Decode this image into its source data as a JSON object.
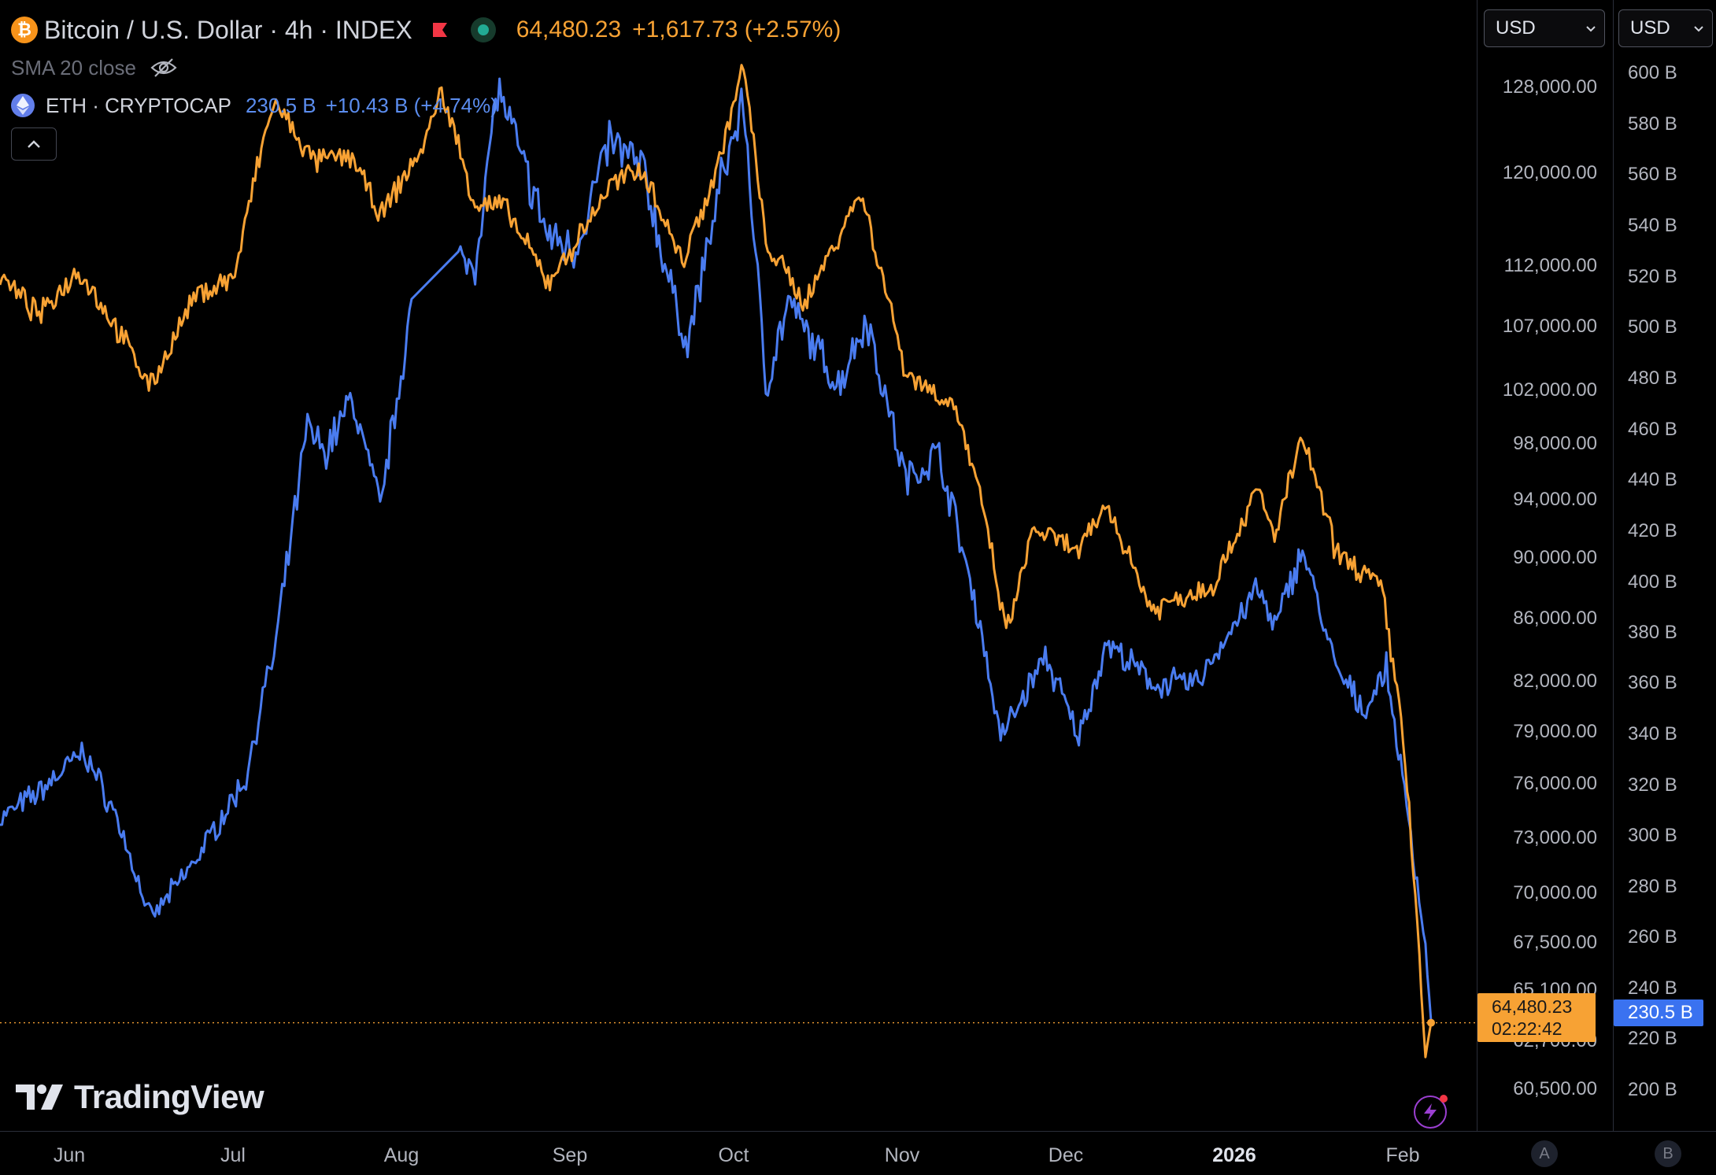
{
  "legend": {
    "title": "Bitcoin / U.S. Dollar · 4h · INDEX",
    "btc_badge": "₿",
    "btc_price": "64,480.23",
    "btc_change": "+1,617.73 (+2.57%)",
    "sma_label": "SMA 20 close",
    "eth_label": "ETH · CRYPTOCAP",
    "eth_value": "230.5 B",
    "eth_change": "+10.43 B (+4.74%)"
  },
  "price_axis_a": {
    "currency": "USD",
    "ticks": [
      "128,000.00",
      "120,000.00",
      "112,000.00",
      "107,000.00",
      "102,000.00",
      "98,000.00",
      "94,000.00",
      "90,000.00",
      "86,000.00",
      "82,000.00",
      "79,000.00",
      "76,000.00",
      "73,000.00",
      "70,000.00",
      "67,500.00",
      "65,100.00",
      "62,700.00",
      "60,500.00"
    ],
    "last_price": "64,480.23",
    "countdown": "02:22:42"
  },
  "price_axis_b": {
    "currency": "USD",
    "ticks": [
      "600 B",
      "580 B",
      "560 B",
      "540 B",
      "520 B",
      "500 B",
      "480 B",
      "460 B",
      "440 B",
      "420 B",
      "400 B",
      "380 B",
      "360 B",
      "340 B",
      "320 B",
      "300 B",
      "280 B",
      "260 B",
      "240 B",
      "220 B",
      "200 B"
    ],
    "last_value": "230.5 B"
  },
  "time_axis": {
    "labels": [
      "Jun",
      "Jul",
      "Aug",
      "Sep",
      "Oct",
      "Nov",
      "Dec",
      "2026",
      "Feb"
    ],
    "scale_a": "A",
    "scale_b": "B"
  },
  "watermark": "TradingView",
  "colors": {
    "btc": "#f7a234",
    "eth": "#4a7cf0",
    "background": "#000000"
  },
  "chart_data": {
    "type": "line",
    "timeframe": "4h",
    "x_range": [
      "2025-05-26",
      "2026-02-06"
    ],
    "series": [
      {
        "name": "Bitcoin / U.S. Dollar",
        "axis": "A",
        "unit": "USD",
        "points": [
          [
            "2025-05-26",
            108500
          ],
          [
            "2025-06-02",
            105500
          ],
          [
            "2025-06-09",
            109000
          ],
          [
            "2025-06-16",
            104500
          ],
          [
            "2025-06-22",
            100500
          ],
          [
            "2025-06-30",
            107000
          ],
          [
            "2025-07-07",
            108500
          ],
          [
            "2025-07-11",
            117000
          ],
          [
            "2025-07-14",
            122500
          ],
          [
            "2025-07-21",
            117500
          ],
          [
            "2025-07-28",
            118000
          ],
          [
            "2025-08-02",
            113000
          ],
          [
            "2025-08-10",
            119000
          ],
          [
            "2025-08-13",
            123500
          ],
          [
            "2025-08-19",
            114000
          ],
          [
            "2025-08-24",
            114000
          ],
          [
            "2025-09-01",
            108000
          ],
          [
            "2025-09-06",
            111000
          ],
          [
            "2025-09-12",
            115500
          ],
          [
            "2025-09-18",
            117000
          ],
          [
            "2025-09-25",
            109500
          ],
          [
            "2025-10-01",
            116500
          ],
          [
            "2025-10-06",
            125500
          ],
          [
            "2025-10-10",
            111000
          ],
          [
            "2025-10-17",
            106500
          ],
          [
            "2025-10-27",
            115000
          ],
          [
            "2025-11-04",
            101500
          ],
          [
            "2025-11-13",
            99000
          ],
          [
            "2025-11-18",
            92000
          ],
          [
            "2025-11-22",
            84500
          ],
          [
            "2025-11-27",
            91000
          ],
          [
            "2025-12-05",
            89500
          ],
          [
            "2025-12-10",
            92500
          ],
          [
            "2025-12-18",
            86000
          ],
          [
            "2025-12-29",
            87500
          ],
          [
            "2026-01-06",
            93500
          ],
          [
            "2026-01-09",
            90500
          ],
          [
            "2026-01-14",
            97000
          ],
          [
            "2026-01-20",
            89500
          ],
          [
            "2026-01-28",
            87500
          ],
          [
            "2026-02-01",
            79000
          ],
          [
            "2026-02-05",
            63000
          ],
          [
            "2026-02-06",
            64480.23
          ]
        ]
      },
      {
        "name": "ETH · CRYPTOCAP",
        "axis": "B",
        "unit": "B",
        "points": [
          [
            "2025-05-26",
            305
          ],
          [
            "2025-06-02",
            315
          ],
          [
            "2025-06-10",
            330
          ],
          [
            "2025-06-16",
            305
          ],
          [
            "2025-06-22",
            268
          ],
          [
            "2025-06-30",
            290
          ],
          [
            "2025-07-09",
            320
          ],
          [
            "2025-07-12",
            350
          ],
          [
            "2025-07-14",
            365
          ],
          [
            "2025-07-20",
            450
          ],
          [
            "2025-07-23",
            440
          ],
          [
            "2025-07-28",
            460
          ],
          [
            "2025-08-02",
            420
          ],
          [
            "2025-08-08",
            500
          ],
          [
            "2025-08-13],",
            555
          ],
          [
            "2025-08-16",
            510
          ],
          [
            "2025-08-19",
            510
          ],
          [
            "2025-08-23",
            575
          ],
          [
            "2025-08-27",
            550
          ],
          [
            "2025-09-01",
            520
          ],
          [
            "2025-09-06",
            515
          ],
          [
            "2025-09-12",
            555
          ],
          [
            "2025-09-18",
            545
          ],
          [
            "2025-09-23",
            500
          ],
          [
            "2025-09-26",
            480
          ],
          [
            "2025-10-02",
            540
          ],
          [
            "2025-10-06",
            570
          ],
          [
            "2025-10-10",
            465
          ],
          [
            "2025-10-14",
            495
          ],
          [
            "2025-10-23",
            465
          ],
          [
            "2025-10-28",
            490
          ],
          [
            "2025-11-04",
            430
          ],
          [
            "2025-11-10",
            440
          ],
          [
            "2025-11-17",
            380
          ],
          [
            "2025-11-21",
            335
          ],
          [
            "2025-11-29",
            365
          ],
          [
            "2025-12-05",
            335
          ],
          [
            "2025-12-10",
            370
          ],
          [
            "2025-12-18",
            355
          ],
          [
            "2025-12-26",
            355
          ],
          [
            "2026-01-06",
            390
          ],
          [
            "2026-01-09",
            375
          ],
          [
            "2026-01-14",
            405
          ],
          [
            "2026-01-20",
            360
          ],
          [
            "2026-01-25",
            345
          ],
          [
            "2026-01-29",
            360
          ],
          [
            "2026-02-02",
            305
          ],
          [
            "2026-02-05",
            258
          ],
          [
            "2026-02-06",
            230.5
          ]
        ]
      }
    ],
    "axis_a_scale": "log",
    "axis_a_range": [
      59800,
      131500
    ],
    "axis_b_range": [
      190,
      607
    ],
    "legend_position": "top-left",
    "grid": false
  }
}
